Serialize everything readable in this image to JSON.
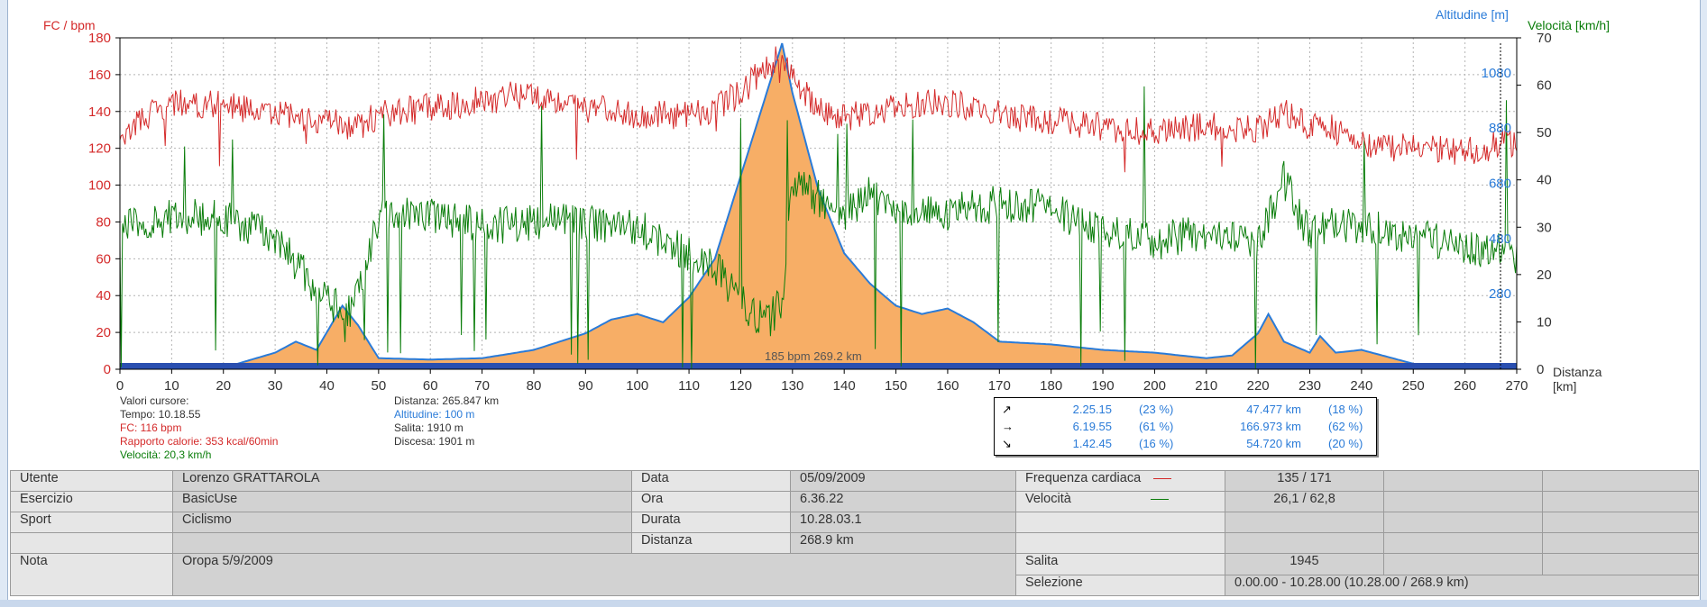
{
  "chart": {
    "left_axis_label": "FC / bpm",
    "right_axis1_label": "Altitudine [m]",
    "right_axis2_label": "Velocità [km/h]",
    "x_axis_label_line1": "Distanza",
    "x_axis_label_line2": "[km]",
    "cursor_label": "185 bpm 269.2 km",
    "colors": {
      "hr": "#d42a2a",
      "speed": "#0a7d0a",
      "altitude_line": "#2a7bd8",
      "altitude_fill": "#f7ae66",
      "axis_left": "#d42a2a",
      "axis_right1": "#2a7bd8",
      "axis_right2": "#0a7d0a"
    }
  },
  "chart_data": {
    "type": "line",
    "x_ticks": [
      "0",
      "10",
      "20",
      "30",
      "40",
      "50",
      "60",
      "70",
      "80",
      "90",
      "100",
      "110",
      "120",
      "130",
      "140",
      "150",
      "160",
      "170",
      "180",
      "190",
      "200",
      "210",
      "220",
      "230",
      "240",
      "250",
      "260",
      "270"
    ],
    "hr_ticks": [
      "0",
      "20",
      "40",
      "60",
      "80",
      "100",
      "120",
      "140",
      "160",
      "180"
    ],
    "altitude_ticks": [
      "280",
      "480",
      "680",
      "880",
      "1080"
    ],
    "speed_ticks": [
      "0",
      "10",
      "20",
      "30",
      "40",
      "50",
      "60",
      "70"
    ],
    "xlim": [
      0,
      270
    ],
    "hr_ylim": [
      0,
      180
    ],
    "speed_ylim": [
      0,
      70
    ],
    "altitude_ylim": [
      0,
      1200
    ],
    "grid": true,
    "series": [
      {
        "name": "FC",
        "axis": "left",
        "x": [
          0,
          10,
          20,
          30,
          40,
          45,
          50,
          60,
          70,
          80,
          90,
          100,
          110,
          115,
          120,
          125,
          128,
          130,
          135,
          140,
          145,
          150,
          160,
          170,
          180,
          190,
          200,
          210,
          220,
          225,
          230,
          235,
          240,
          250,
          260,
          270
        ],
        "y": [
          128,
          145,
          144,
          138,
          135,
          130,
          138,
          142,
          146,
          150,
          142,
          138,
          138,
          142,
          150,
          165,
          170,
          160,
          140,
          136,
          140,
          142,
          145,
          138,
          135,
          132,
          128,
          132,
          130,
          140,
          132,
          130,
          122,
          120,
          118,
          124
        ]
      },
      {
        "name": "Velocità",
        "axis": "right2",
        "x": [
          0,
          10,
          20,
          30,
          40,
          45,
          50,
          60,
          70,
          80,
          90,
          100,
          110,
          115,
          120,
          125,
          128,
          130,
          135,
          140,
          145,
          150,
          160,
          170,
          180,
          190,
          200,
          210,
          220,
          225,
          230,
          235,
          240,
          250,
          260,
          270
        ],
        "y": [
          30,
          32,
          32,
          28,
          14,
          12,
          32,
          33,
          30,
          31,
          31,
          30,
          24,
          22,
          14,
          10,
          14,
          40,
          36,
          33,
          37,
          33,
          33,
          35,
          34,
          29,
          27,
          29,
          27,
          40,
          28,
          31,
          30,
          28,
          26,
          24
        ]
      },
      {
        "name": "Altitudine",
        "axis": "right1",
        "x": [
          0,
          10,
          20,
          30,
          34,
          38,
          43,
          46,
          50,
          60,
          70,
          80,
          90,
          95,
          100,
          105,
          110,
          115,
          120,
          125,
          128,
          130,
          135,
          140,
          145,
          150,
          155,
          160,
          165,
          170,
          180,
          190,
          200,
          210,
          215,
          220,
          222,
          225,
          230,
          232,
          235,
          240,
          250,
          260,
          270
        ],
        "y": [
          5,
          5,
          5,
          60,
          100,
          70,
          230,
          160,
          40,
          35,
          40,
          70,
          130,
          180,
          200,
          170,
          260,
          400,
          700,
          1000,
          1180,
          1000,
          650,
          420,
          310,
          230,
          200,
          220,
          170,
          100,
          90,
          70,
          60,
          40,
          50,
          130,
          200,
          100,
          60,
          120,
          60,
          70,
          20,
          10,
          5
        ]
      }
    ]
  },
  "cursor_values": {
    "title": "Valori cursore:",
    "tempo": "Tempo: 10.18.55",
    "fc": "FC: 116 bpm",
    "rapporto": "Rapporto calorie: 353 kcal/60min",
    "velocita": "Velocità: 20,3 km/h"
  },
  "summary": {
    "distanza": "Distanza: 265.847 km",
    "altitudine": "Altitudine: 100 m",
    "salita": "Salita: 1910 m",
    "discesa": "Discesa: 1901 m"
  },
  "splits": [
    {
      "arrow": "↗",
      "time": "2.25.15",
      "time_pct": "(23 %)",
      "dist": "47.477 km",
      "dist_pct": "(18 %)"
    },
    {
      "arrow": "→",
      "time": "6.19.55",
      "time_pct": "(61 %)",
      "dist": "166.973 km",
      "dist_pct": "(62 %)"
    },
    {
      "arrow": "↘",
      "time": "1.42.45",
      "time_pct": "(16 %)",
      "dist": "54.720 km",
      "dist_pct": "(20 %)"
    }
  ],
  "info": {
    "utente_label": "Utente",
    "utente": "Lorenzo  GRATTAROLA",
    "esercizio_label": "Esercizio",
    "esercizio": "BasicUse",
    "sport_label": "Sport",
    "sport": "Ciclismo",
    "nota_label": "Nota",
    "nota": "Oropa 5/9/2009",
    "data_label": "Data",
    "data": "05/09/2009",
    "ora_label": "Ora",
    "ora": "6.36.22",
    "durata_label": "Durata",
    "durata": "10.28.03.1",
    "distanza_label": "Distanza",
    "distanza": "268.9 km",
    "fc_label": "Frequenza cardiaca",
    "fc": "135 / 171",
    "vel_label": "Velocità",
    "vel": "26,1 / 62,8",
    "salita_label": "Salita",
    "salita": "1945",
    "selezione_label": "Selezione",
    "selezione": "0.00.00 - 10.28.00 (10.28.00 / 268.9 km)"
  }
}
